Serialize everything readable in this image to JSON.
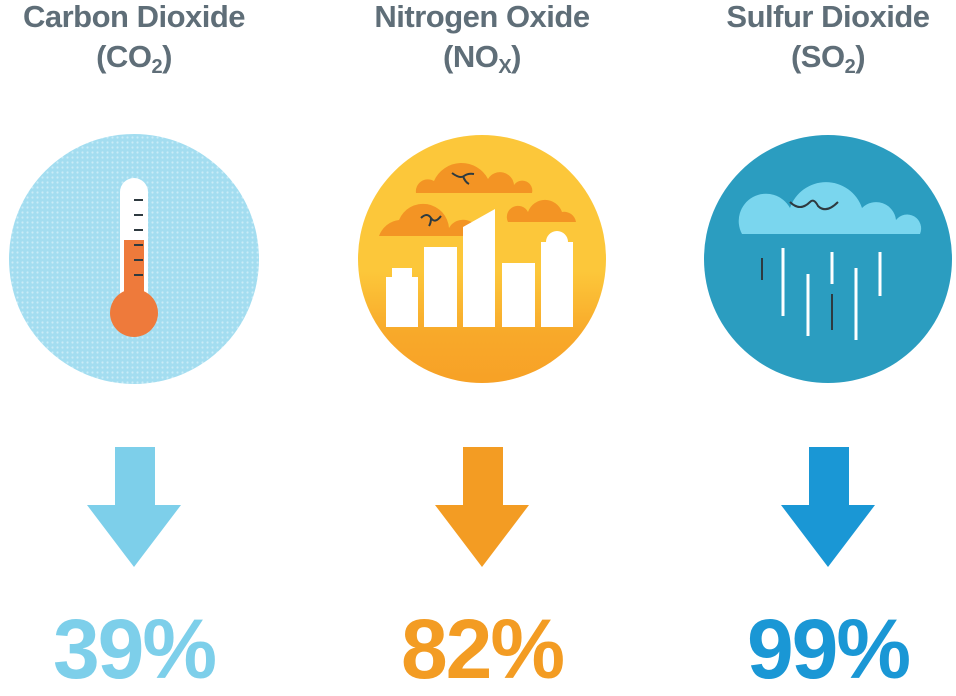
{
  "items": [
    {
      "name": "Carbon Dioxide",
      "formula_base": "(CO",
      "formula_sub": "2",
      "formula_end": ")",
      "icon": "thermometer-icon",
      "reduction": "39%",
      "color": "#7dcfea",
      "circle_color": "#a3ddf0"
    },
    {
      "name": "Nitrogen Oxide",
      "formula_base": "(NO",
      "formula_sub": "X",
      "formula_end": ")",
      "icon": "city-smog-icon",
      "reduction": "82%",
      "color": "#f39c23",
      "circle_color": "#fcc73a"
    },
    {
      "name": "Sulfur Dioxide",
      "formula_base": "(SO",
      "formula_sub": "2",
      "formula_end": ")",
      "icon": "acid-rain-cloud-icon",
      "reduction": "99%",
      "color": "#1a97d5",
      "circle_color": "#2b9dc0"
    }
  ],
  "arrow_icon": "arrow-down-icon"
}
